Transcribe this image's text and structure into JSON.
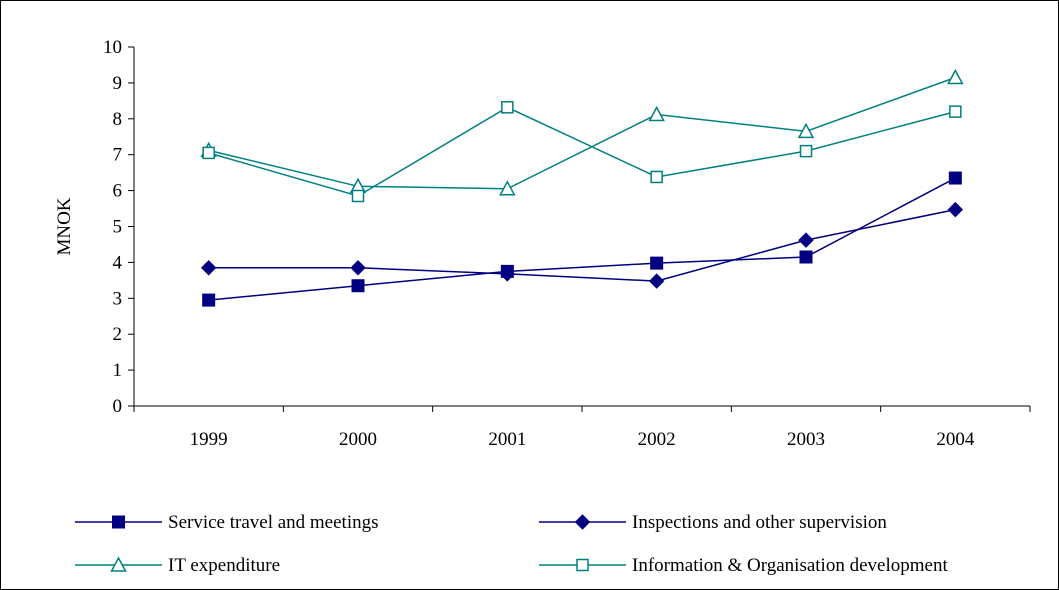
{
  "chart_data": {
    "type": "line",
    "title": "",
    "xlabel": "",
    "ylabel": "MNOK",
    "ylim": [
      0,
      10
    ],
    "yticks": [
      0,
      1,
      2,
      3,
      4,
      5,
      6,
      7,
      8,
      9,
      10
    ],
    "categories": [
      "1999",
      "2000",
      "2001",
      "2002",
      "2003",
      "2004"
    ],
    "grid": false,
    "legend_position": "bottom",
    "series": [
      {
        "name": "Service travel and meetings",
        "marker": "square-filled",
        "color": "#000080",
        "values": [
          2.95,
          3.35,
          3.75,
          3.98,
          4.15,
          6.35
        ]
      },
      {
        "name": "Inspections and other supervision",
        "marker": "diamond-filled",
        "color": "#000080",
        "values": [
          3.85,
          3.85,
          3.68,
          3.48,
          4.62,
          5.47
        ]
      },
      {
        "name": "IT expenditure",
        "marker": "triangle-open",
        "color": "#008080",
        "values": [
          7.12,
          6.12,
          6.05,
          8.12,
          7.65,
          9.15
        ]
      },
      {
        "name": "Information & Organisation development",
        "marker": "square-open",
        "color": "#008080",
        "values": [
          7.05,
          5.85,
          8.32,
          6.38,
          7.1,
          8.2
        ]
      }
    ]
  }
}
